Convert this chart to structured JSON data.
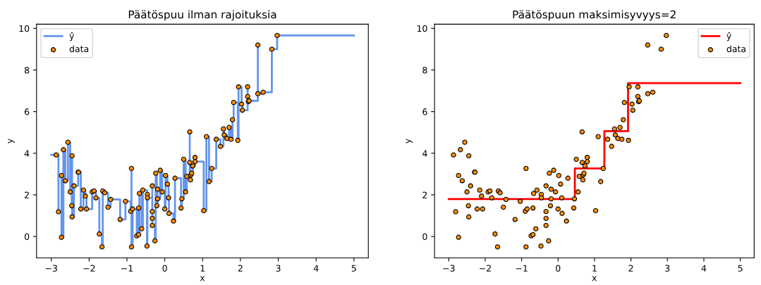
{
  "chart_data": [
    {
      "type": "step",
      "title": "Päätöspuu ilman rajoituksia",
      "xlabel": "x",
      "ylabel": "y",
      "xlim": [
        -3.39,
        5.38
      ],
      "ylim": [
        -1.03,
        10.2
      ],
      "xticks": [
        -3,
        -2,
        -1,
        0,
        1,
        2,
        3,
        4,
        5
      ],
      "yticks": [
        0,
        2,
        4,
        6,
        8,
        10
      ],
      "grid": false,
      "legend": "top left",
      "series": [
        {
          "name": "ŷ",
          "color": "#6495ed",
          "x": [
            -3,
            -2.87,
            -2.81,
            -2.73,
            -2.73,
            -2.68,
            -2.63,
            -2.56,
            -2.5,
            -2.46,
            -2.45,
            -2.45,
            -2.4,
            -2.29,
            -2.28,
            -2.22,
            -2.15,
            -2.1,
            -2.07,
            -1.92,
            -1.87,
            -1.82,
            -1.73,
            -1.66,
            -1.64,
            -1.59,
            -1.5,
            -1.43,
            -1.18,
            -1.04,
            -0.9,
            -0.88,
            -0.88,
            -0.85,
            -0.74,
            -0.69,
            -0.69,
            -0.67,
            -0.61,
            -0.58,
            -0.47,
            -0.46,
            -0.46,
            -0.33,
            -0.33,
            -0.33,
            -0.33,
            -0.26,
            -0.24,
            -0.21,
            -0.19,
            -0.19,
            -0.12,
            -0.07,
            0.0,
            0.02,
            0.07,
            0.1,
            0.11,
            0.23,
            0.27,
            0.43,
            0.45,
            0.5,
            0.55,
            0.58,
            0.66,
            0.66,
            0.68,
            0.69,
            0.71,
            0.74,
            0.8,
            0.8,
            1.03,
            1.1,
            1.17,
            1.24,
            1.36,
            1.47,
            1.55,
            1.57,
            1.64,
            1.7,
            1.75,
            1.79,
            1.82,
            1.93,
            1.95,
            2.03,
            2.05,
            2.19,
            2.19,
            2.21,
            2.23,
            2.46,
            2.46,
            2.6,
            2.83,
            2.97,
            5
          ],
          "values": [
            3.92,
            3.92,
            1.19,
            2.93,
            -0.04,
            4.17,
            2.68,
            4.53,
            2.14,
            1.48,
            3.88,
            0.94,
            2.43,
            3.09,
            3.09,
            1.32,
            2.23,
            1.94,
            1.32,
            2.14,
            2.19,
            1.86,
            0.12,
            -0.5,
            2.19,
            2.1,
            1.41,
            1.78,
            0.82,
            1.69,
            1.21,
            3.27,
            -0.5,
            1.32,
            0.03,
            1.37,
            0.09,
            2.07,
            0.37,
            2.23,
            -0.46,
            2.02,
            1.86,
            2.43,
            1.2,
            0.87,
            0.53,
            -0.21,
            3.04,
            1.48,
            2.27,
            1.81,
            3.18,
            2.14,
            1.32,
            2.93,
            2.52,
            1.86,
            1.11,
            0.74,
            2.8,
            1.37,
            1.81,
            3.71,
            2.14,
            2.89,
            5.03,
            3.56,
            2.72,
            2.96,
            3.04,
            3.39,
            3.8,
            3.6,
            1.24,
            4.8,
            2.64,
            3.27,
            4.67,
            4.33,
            5.17,
            4.88,
            4.71,
            5.24,
            4.67,
            5.61,
            6.44,
            4.62,
            7.19,
            6.36,
            6.07,
            7.19,
            6.73,
            6.48,
            6.52,
            9.2,
            6.86,
            6.93,
            9.0,
            9.66,
            9.66
          ]
        },
        {
          "name": "data",
          "type": "scatter",
          "color": "#ff8c00",
          "x": [
            -2.87,
            -2.81,
            -2.73,
            -2.73,
            -2.68,
            -2.63,
            -2.56,
            -2.5,
            -2.46,
            -2.45,
            -2.45,
            -2.4,
            -2.29,
            -2.28,
            -2.22,
            -2.15,
            -2.1,
            -2.07,
            -1.92,
            -1.87,
            -1.82,
            -1.73,
            -1.66,
            -1.64,
            -1.59,
            -1.5,
            -1.43,
            -1.18,
            -1.04,
            -0.9,
            -0.88,
            -0.88,
            -0.85,
            -0.74,
            -0.69,
            -0.69,
            -0.67,
            -0.61,
            -0.58,
            -0.47,
            -0.46,
            -0.46,
            -0.33,
            -0.33,
            -0.33,
            -0.33,
            -0.26,
            -0.24,
            -0.21,
            -0.19,
            -0.19,
            -0.12,
            -0.07,
            0.0,
            0.02,
            0.07,
            0.1,
            0.11,
            0.23,
            0.27,
            0.43,
            0.45,
            0.5,
            0.55,
            0.58,
            0.66,
            0.66,
            0.68,
            0.69,
            0.71,
            0.74,
            0.8,
            0.8,
            1.03,
            1.1,
            1.17,
            1.24,
            1.36,
            1.47,
            1.55,
            1.57,
            1.64,
            1.7,
            1.75,
            1.79,
            1.82,
            1.93,
            1.95,
            2.03,
            2.05,
            2.19,
            2.19,
            2.21,
            2.23,
            2.46,
            2.46,
            2.6,
            2.83,
            2.97
          ],
          "values": [
            3.92,
            1.19,
            2.93,
            -0.04,
            4.17,
            2.68,
            4.53,
            2.14,
            1.48,
            3.88,
            0.94,
            2.43,
            3.09,
            3.09,
            1.32,
            2.23,
            1.94,
            1.32,
            2.14,
            2.19,
            1.86,
            0.12,
            -0.5,
            2.19,
            2.1,
            1.41,
            1.78,
            0.82,
            1.69,
            1.21,
            3.27,
            -0.5,
            1.32,
            0.03,
            1.37,
            0.09,
            2.07,
            0.37,
            2.23,
            -0.46,
            2.02,
            1.86,
            2.43,
            1.2,
            0.87,
            0.53,
            -0.21,
            3.04,
            1.48,
            2.27,
            1.81,
            3.18,
            2.14,
            1.32,
            2.93,
            2.52,
            1.86,
            1.11,
            0.74,
            2.8,
            1.37,
            1.81,
            3.71,
            2.14,
            2.89,
            5.03,
            3.56,
            2.72,
            2.96,
            3.04,
            3.39,
            3.8,
            3.6,
            1.24,
            4.8,
            2.64,
            3.27,
            4.67,
            4.33,
            5.17,
            4.88,
            4.71,
            5.24,
            4.67,
            5.61,
            6.44,
            4.62,
            7.19,
            6.36,
            6.07,
            7.19,
            6.73,
            6.48,
            6.52,
            9.2,
            6.86,
            6.93,
            9.0,
            9.66
          ]
        }
      ]
    },
    {
      "type": "step",
      "title": "Päätöspuun maksimisyvyys=2",
      "xlabel": "x",
      "ylabel": "y",
      "xlim": [
        -3.39,
        5.38
      ],
      "ylim": [
        -1.03,
        10.2
      ],
      "xticks": [
        -3,
        -2,
        -1,
        0,
        1,
        2,
        3,
        4,
        5
      ],
      "yticks": [
        0,
        2,
        4,
        6,
        8,
        10
      ],
      "grid": false,
      "legend": "top right",
      "series": [
        {
          "name": "ŷ",
          "color": "#ff0000",
          "x": [
            -3,
            0.46,
            1.27,
            1.92,
            5
          ],
          "values": [
            1.8,
            3.27,
            5.06,
            7.37,
            7.37
          ]
        },
        {
          "name": "data",
          "type": "scatter",
          "color": "#ff8c00",
          "x": [
            -2.87,
            -2.81,
            -2.73,
            -2.73,
            -2.68,
            -2.63,
            -2.56,
            -2.5,
            -2.46,
            -2.45,
            -2.45,
            -2.4,
            -2.29,
            -2.28,
            -2.22,
            -2.15,
            -2.1,
            -2.07,
            -1.92,
            -1.87,
            -1.82,
            -1.73,
            -1.66,
            -1.64,
            -1.59,
            -1.5,
            -1.43,
            -1.18,
            -1.04,
            -0.9,
            -0.88,
            -0.88,
            -0.85,
            -0.74,
            -0.69,
            -0.69,
            -0.67,
            -0.61,
            -0.58,
            -0.47,
            -0.46,
            -0.46,
            -0.33,
            -0.33,
            -0.33,
            -0.33,
            -0.26,
            -0.24,
            -0.21,
            -0.19,
            -0.19,
            -0.12,
            -0.07,
            0.0,
            0.02,
            0.07,
            0.1,
            0.11,
            0.23,
            0.27,
            0.43,
            0.45,
            0.5,
            0.55,
            0.58,
            0.66,
            0.66,
            0.68,
            0.69,
            0.71,
            0.74,
            0.8,
            0.8,
            1.03,
            1.1,
            1.17,
            1.24,
            1.36,
            1.47,
            1.55,
            1.57,
            1.64,
            1.7,
            1.75,
            1.79,
            1.82,
            1.93,
            1.95,
            2.03,
            2.05,
            2.19,
            2.19,
            2.21,
            2.23,
            2.46,
            2.46,
            2.6,
            2.83,
            2.97
          ],
          "values": [
            3.92,
            1.19,
            2.93,
            -0.04,
            4.17,
            2.68,
            4.53,
            2.14,
            1.48,
            3.88,
            0.94,
            2.43,
            3.09,
            3.09,
            1.32,
            2.23,
            1.94,
            1.32,
            2.14,
            2.19,
            1.86,
            0.12,
            -0.5,
            2.19,
            2.1,
            1.41,
            1.78,
            0.82,
            1.69,
            1.21,
            3.27,
            -0.5,
            1.32,
            0.03,
            1.37,
            0.09,
            2.07,
            0.37,
            2.23,
            -0.46,
            2.02,
            1.86,
            2.43,
            1.2,
            0.87,
            0.53,
            -0.21,
            3.04,
            1.48,
            2.27,
            1.81,
            3.18,
            2.14,
            1.32,
            2.93,
            2.52,
            1.86,
            1.11,
            0.74,
            2.8,
            1.37,
            1.81,
            3.71,
            2.14,
            2.89,
            5.03,
            3.56,
            2.72,
            2.96,
            3.04,
            3.39,
            3.8,
            3.6,
            1.24,
            4.8,
            2.64,
            3.27,
            4.67,
            4.33,
            5.17,
            4.88,
            4.71,
            5.24,
            4.67,
            5.61,
            6.44,
            4.62,
            7.19,
            6.36,
            6.07,
            7.19,
            6.73,
            6.48,
            6.52,
            9.2,
            6.86,
            6.93,
            9.0,
            9.66
          ]
        }
      ]
    }
  ]
}
